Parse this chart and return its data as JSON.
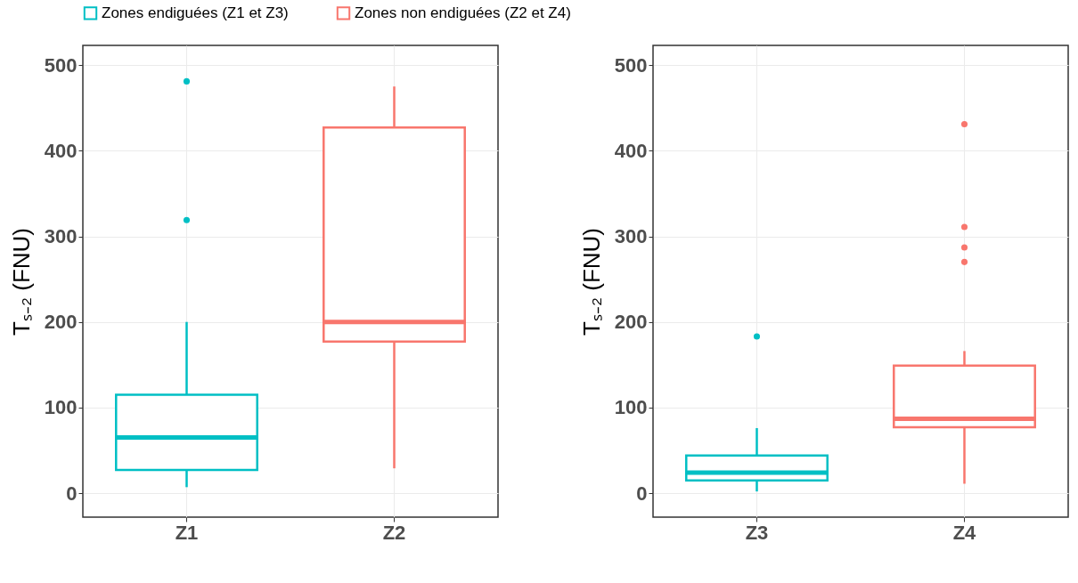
{
  "chart_data": [
    {
      "type": "box",
      "ylabel": "Tₛ₋₂ (FNU)",
      "categories": [
        "Z1",
        "Z2"
      ],
      "ylim": [
        -28,
        523
      ],
      "yticks": [
        0,
        100,
        200,
        300,
        400,
        500
      ],
      "grid": true,
      "legend": "top",
      "series": [
        {
          "name": "Zones endiguées (Z1 et Z3)",
          "color": "#00bfc4",
          "boxes": [
            {
              "low": 7,
              "q1": 27,
              "median": 65,
              "q3": 115,
              "high": 200,
              "outliers": [
                319,
                481
              ]
            },
            null
          ]
        },
        {
          "name": "Zones non endiguées (Z2 et Z4)",
          "color": "#f8766d",
          "boxes": [
            null,
            {
              "low": 29,
              "q1": 177,
              "median": 200,
              "q3": 427,
              "high": 475
            }
          ]
        }
      ]
    },
    {
      "type": "box",
      "ylabel": "Tₛ₋₂ (FNU)",
      "categories": [
        "Z3",
        "Z4"
      ],
      "ylim": [
        -28,
        523
      ],
      "yticks": [
        0,
        100,
        200,
        300,
        400,
        500
      ],
      "grid": true,
      "series": [
        {
          "color": "#00bfc4",
          "boxes": [
            {
              "low": 2,
              "q1": 15,
              "median": 24,
              "q3": 44,
              "high": 76,
              "outliers": [
                183
              ]
            },
            null
          ]
        },
        {
          "color": "#f8766d",
          "boxes": [
            null,
            {
              "low": 11,
              "q1": 77,
              "median": 87,
              "q3": 149,
              "high": 166,
              "outliers": [
                270,
                287,
                311,
                431
              ]
            }
          ]
        }
      ]
    }
  ]
}
